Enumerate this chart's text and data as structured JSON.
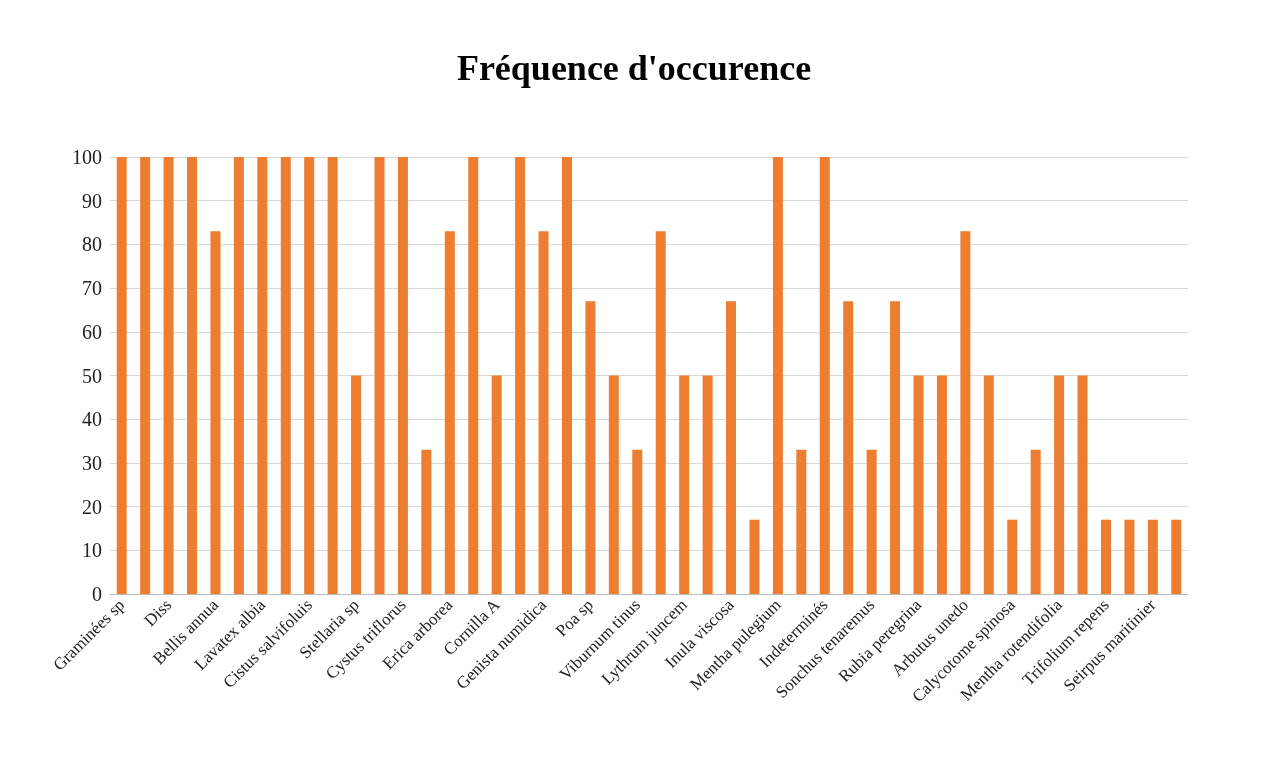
{
  "chart_data": {
    "type": "bar",
    "title": "Fréquence d'occurence",
    "categories": [
      "Graminées sp",
      null,
      "Diss",
      null,
      "Bellis annua",
      null,
      "Lavatex albia",
      null,
      "Cistus salvifoluis",
      null,
      "Stellaria sp",
      null,
      "Cystus triflorus",
      null,
      "Erica arborea",
      null,
      "Cornilla A",
      null,
      "Genista numidica",
      null,
      "Poa sp",
      null,
      "Viburnum tinus",
      null,
      "Lythrum juncem",
      null,
      "Inula viscosa",
      null,
      "Mentha pulegium",
      null,
      "Indeterminés",
      null,
      "Sonchus tenaremus",
      null,
      "Rubia peregrina",
      null,
      "Arbutus unedo",
      null,
      "Calycotome spinosa",
      null,
      "Mentha rotendifolia",
      null,
      "Trifolium repens",
      null,
      "Seirpus maritinier",
      null
    ],
    "values": [
      100,
      100,
      100,
      100,
      83,
      100,
      100,
      100,
      100,
      100,
      50,
      100,
      100,
      33,
      83,
      100,
      50,
      100,
      83,
      100,
      67,
      50,
      33,
      83,
      50,
      50,
      67,
      17,
      100,
      33,
      100,
      67,
      33,
      67,
      50,
      50,
      83,
      50,
      17,
      33,
      50,
      50,
      17,
      17,
      17,
      17
    ],
    "color": "#ed7d31",
    "ylim": [
      0,
      100
    ],
    "yticks": [
      0,
      10,
      20,
      30,
      40,
      50,
      60,
      70,
      80,
      90,
      100
    ],
    "grid": "y"
  }
}
